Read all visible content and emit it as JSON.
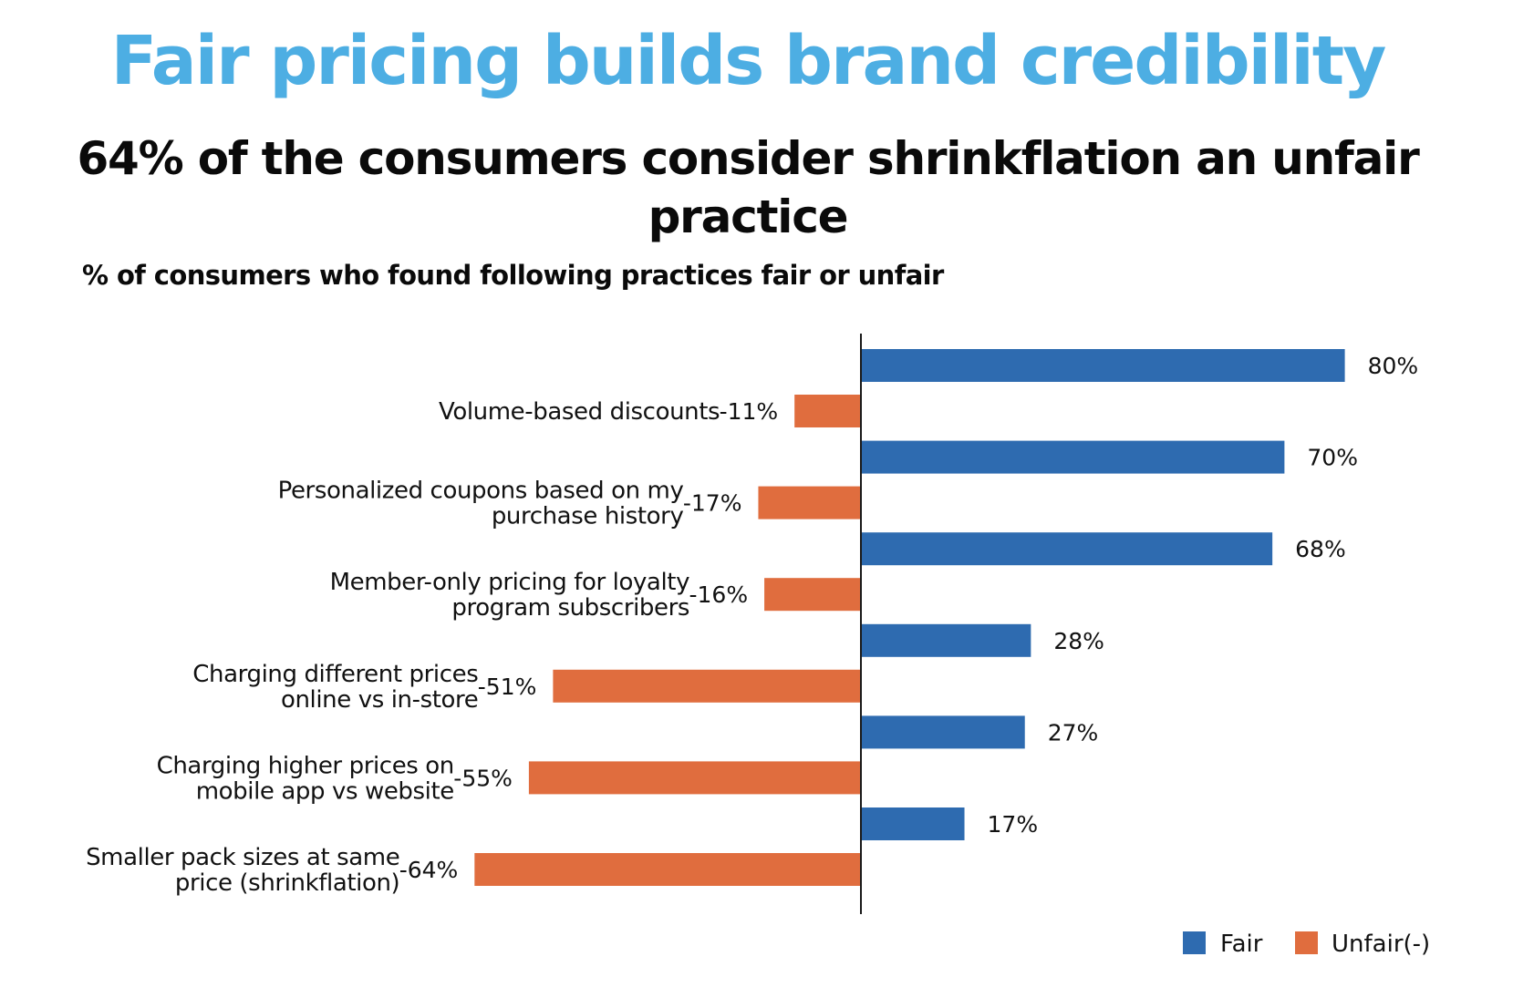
{
  "header": {
    "title": "Fair pricing builds brand credibility",
    "subtitle": "64% of the consumers consider shrinkflation an unfair practice"
  },
  "colors": {
    "title": "#4DAEE3",
    "fair": "#2E6BB0",
    "unfair": "#E06D3E",
    "axis": "#1a1a1a"
  },
  "chart_data": {
    "type": "bar",
    "orientation": "horizontal",
    "title": "% of consumers who found following practices fair or unfair",
    "categories": [
      [
        "Volume-based discounts"
      ],
      [
        "Personalized coupons based on my",
        "purchase history"
      ],
      [
        "Member-only pricing for loyalty",
        "program subscribers"
      ],
      [
        "Charging different prices",
        "online vs in-store"
      ],
      [
        "Charging higher prices on",
        "mobile app vs website"
      ],
      [
        "Smaller pack sizes at same",
        "price (shrinkflation)"
      ]
    ],
    "series": [
      {
        "name": "Fair",
        "values": [
          80,
          70,
          68,
          28,
          27,
          17
        ],
        "labels": [
          "80%",
          "70%",
          "68%",
          "28%",
          "27%",
          "17%"
        ]
      },
      {
        "name": "Unfair(-)",
        "values": [
          -11,
          -17,
          -16,
          -51,
          -55,
          -64
        ],
        "labels": [
          "-11%",
          "-17%",
          "-16%",
          "-51%",
          "-55%",
          "-64%"
        ]
      }
    ],
    "xlim": [
      -64,
      80
    ],
    "unit": "%",
    "grid": false,
    "legend": {
      "position": "bottom-right",
      "entries": [
        "Fair",
        "Unfair(-)"
      ]
    }
  }
}
